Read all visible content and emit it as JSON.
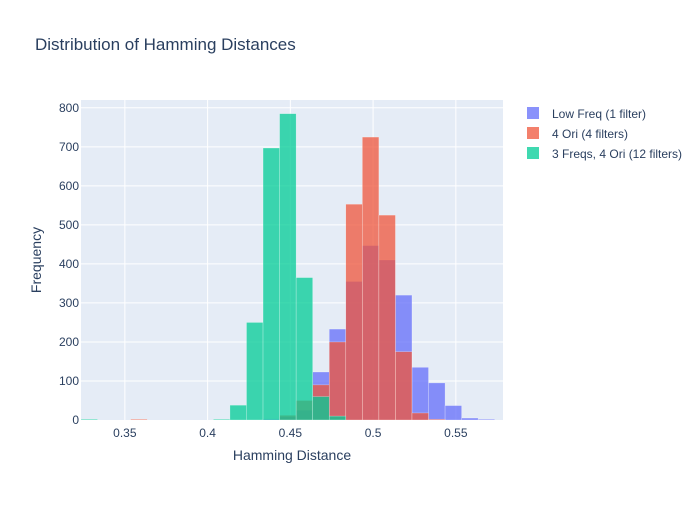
{
  "chart_data": {
    "type": "bar",
    "mode": "overlay-histogram",
    "title": "Distribution of Hamming Distances",
    "xlabel": "Hamming Distance",
    "ylabel": "Frequency",
    "xlim": [
      0.3235,
      0.5785
    ],
    "ylim": [
      0,
      820
    ],
    "bin_width": 0.01,
    "bin_start": 0.3235,
    "x_ticks": [
      0.35,
      0.4,
      0.45,
      0.5,
      0.55
    ],
    "x_tick_labels": [
      "0.35",
      "0.4",
      "0.45",
      "0.5",
      "0.55"
    ],
    "y_ticks": [
      0,
      100,
      200,
      300,
      400,
      500,
      600,
      700,
      800
    ],
    "y_tick_labels": [
      "0",
      "100",
      "200",
      "300",
      "400",
      "500",
      "600",
      "700",
      "800"
    ],
    "grid": true,
    "legend_position": "top-right",
    "series": [
      {
        "name": "Low Freq (1 filter)",
        "color": "#636efa",
        "bins": [
          {
            "x0": 0.4335,
            "count": 3
          },
          {
            "x0": 0.4435,
            "count": 8
          },
          {
            "x0": 0.4535,
            "count": 25
          },
          {
            "x0": 0.4635,
            "count": 123
          },
          {
            "x0": 0.4735,
            "count": 233
          },
          {
            "x0": 0.4835,
            "count": 355
          },
          {
            "x0": 0.4935,
            "count": 447
          },
          {
            "x0": 0.5035,
            "count": 410
          },
          {
            "x0": 0.5135,
            "count": 320
          },
          {
            "x0": 0.5235,
            "count": 135
          },
          {
            "x0": 0.5335,
            "count": 95
          },
          {
            "x0": 0.5435,
            "count": 37
          },
          {
            "x0": 0.5535,
            "count": 5
          },
          {
            "x0": 0.5635,
            "count": 2
          }
        ]
      },
      {
        "name": "4 Ori (4 filters)",
        "color": "#ef553b",
        "bins": [
          {
            "x0": 0.3535,
            "count": 2
          },
          {
            "x0": 0.4435,
            "count": 12
          },
          {
            "x0": 0.4535,
            "count": 50
          },
          {
            "x0": 0.4635,
            "count": 90
          },
          {
            "x0": 0.4735,
            "count": 200
          },
          {
            "x0": 0.4835,
            "count": 553
          },
          {
            "x0": 0.4935,
            "count": 725
          },
          {
            "x0": 0.5035,
            "count": 525
          },
          {
            "x0": 0.5135,
            "count": 175
          },
          {
            "x0": 0.5235,
            "count": 18
          },
          {
            "x0": 0.5335,
            "count": 2
          }
        ]
      },
      {
        "name": "3 Freqs, 4 Ori (12 filters)",
        "color": "#00cc96",
        "bins": [
          {
            "x0": 0.3235,
            "count": 2
          },
          {
            "x0": 0.4035,
            "count": 2
          },
          {
            "x0": 0.4135,
            "count": 38
          },
          {
            "x0": 0.4235,
            "count": 250
          },
          {
            "x0": 0.4335,
            "count": 697
          },
          {
            "x0": 0.4435,
            "count": 785
          },
          {
            "x0": 0.4535,
            "count": 365
          },
          {
            "x0": 0.4635,
            "count": 60
          },
          {
            "x0": 0.4735,
            "count": 10
          }
        ]
      }
    ]
  }
}
